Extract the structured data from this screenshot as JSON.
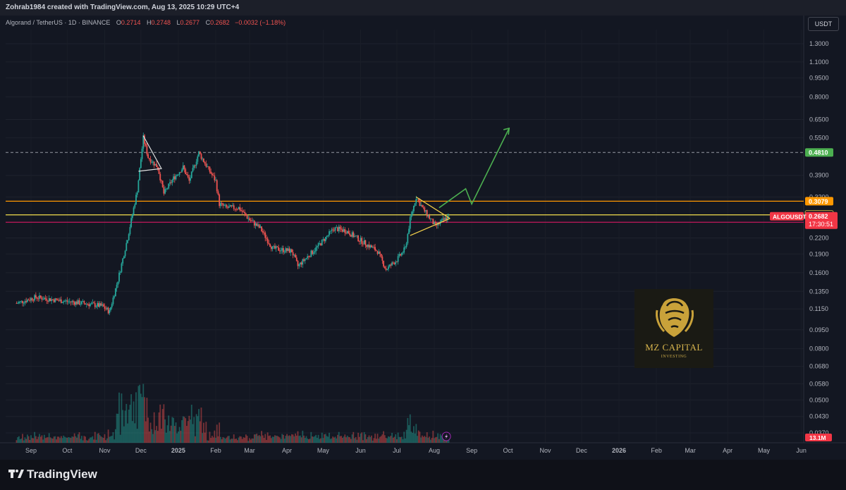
{
  "header": {
    "creator_line": "Zohrab1984 created with TradingView.com, Aug 13, 2025 10:29 UTC+4",
    "symbol_line": "Algorand / TetherUS · 1D · BINANCE",
    "ohlc": {
      "o_label": "O",
      "o": "0.2714",
      "h_label": "H",
      "h": "0.2748",
      "l_label": "L",
      "l": "0.2677",
      "c_label": "C",
      "c": "0.2682",
      "change": "−0.0032 (−1.18%)"
    },
    "currency": "USDT"
  },
  "footer": {
    "brand": "TradingView"
  },
  "watermark": {
    "name": "MZ CAPITAL",
    "sub": "INVESTING"
  },
  "colors": {
    "up": "#26a69a",
    "down": "#ef5350",
    "orange": "#ff9800",
    "yellow": "#f5e04d",
    "magenta": "#c2185b",
    "green_arrow": "#4caf50",
    "background": "#131722"
  },
  "chart_data": {
    "type": "candlestick",
    "scale": "log",
    "ylim": [
      0.037,
      1.35
    ],
    "y_ticks": [
      "1.3000",
      "1.1000",
      "0.9500",
      "0.8000",
      "0.6500",
      "0.5500",
      "0.3900",
      "0.3200",
      "0.2200",
      "0.1900",
      "0.1600",
      "0.1350",
      "0.1150",
      "0.0950",
      "0.0800",
      "0.0680",
      "0.0580",
      "0.0500",
      "0.0430",
      "0.0370"
    ],
    "x_ticks": [
      "Sep",
      "Oct",
      "Nov",
      "Dec",
      "2025",
      "Feb",
      "Mar",
      "Apr",
      "May",
      "Jun",
      "Jul",
      "Aug",
      "Sep",
      "Oct",
      "Nov",
      "Dec",
      "2026",
      "Feb",
      "Mar",
      "Apr",
      "May",
      "Jun"
    ],
    "price_path": [
      {
        "t": "Aug 20",
        "p": 0.121
      },
      {
        "t": "Sep 5",
        "p": 0.128
      },
      {
        "t": "Sep 25",
        "p": 0.124
      },
      {
        "t": "Oct 15",
        "p": 0.121
      },
      {
        "t": "Oct 30",
        "p": 0.118
      },
      {
        "t": "Nov 5",
        "p": 0.112
      },
      {
        "t": "Nov 12",
        "p": 0.15
      },
      {
        "t": "Nov 20",
        "p": 0.22
      },
      {
        "t": "Nov 28",
        "p": 0.34
      },
      {
        "t": "Dec 3",
        "p": 0.55
      },
      {
        "t": "Dec 7",
        "p": 0.46
      },
      {
        "t": "Dec 15",
        "p": 0.42
      },
      {
        "t": "Dec 20",
        "p": 0.33
      },
      {
        "t": "Dec 28",
        "p": 0.38
      },
      {
        "t": "Jan 5",
        "p": 0.42
      },
      {
        "t": "Jan 10",
        "p": 0.37
      },
      {
        "t": "Jan 18",
        "p": 0.48
      },
      {
        "t": "Jan 25",
        "p": 0.42
      },
      {
        "t": "Feb 1",
        "p": 0.37
      },
      {
        "t": "Feb 4",
        "p": 0.3
      },
      {
        "t": "Feb 10",
        "p": 0.29
      },
      {
        "t": "Feb 20",
        "p": 0.29
      },
      {
        "t": "Mar 1",
        "p": 0.26
      },
      {
        "t": "Mar 10",
        "p": 0.24
      },
      {
        "t": "Mar 20",
        "p": 0.2
      },
      {
        "t": "Apr 5",
        "p": 0.195
      },
      {
        "t": "Apr 10",
        "p": 0.17
      },
      {
        "t": "Apr 25",
        "p": 0.2
      },
      {
        "t": "May 10",
        "p": 0.24
      },
      {
        "t": "May 20",
        "p": 0.235
      },
      {
        "t": "Jun 1",
        "p": 0.215
      },
      {
        "t": "Jun 15",
        "p": 0.195
      },
      {
        "t": "Jun 22",
        "p": 0.165
      },
      {
        "t": "Jul 1",
        "p": 0.18
      },
      {
        "t": "Jul 8",
        "p": 0.2
      },
      {
        "t": "Jul 12",
        "p": 0.26
      },
      {
        "t": "Jul 17",
        "p": 0.32
      },
      {
        "t": "Jul 22",
        "p": 0.29
      },
      {
        "t": "Aug 2",
        "p": 0.245
      },
      {
        "t": "Aug 13",
        "p": 0.2682
      }
    ],
    "volume_peak": "13.1M",
    "levels": [
      {
        "label": "0.4810",
        "price": 0.481,
        "style": "dashed",
        "color": "#9598a1",
        "tag_color": "#4caf50"
      },
      {
        "label": "0.3079",
        "price": 0.3079,
        "style": "solid",
        "color": "#ff9800",
        "tag_color": "#ff9800"
      },
      {
        "label": "0.2717",
        "price": 0.2717,
        "style": "solid",
        "color": "#f5e04d",
        "tag_color": "#131722"
      },
      {
        "label": "0.2540",
        "price": 0.254,
        "style": "solid",
        "color": "#c2185b",
        "tag_color": "#f23645"
      }
    ],
    "price_label": {
      "symbol": "ALGOUSDT",
      "price": "0.2682",
      "countdown": "17:30:51"
    }
  }
}
